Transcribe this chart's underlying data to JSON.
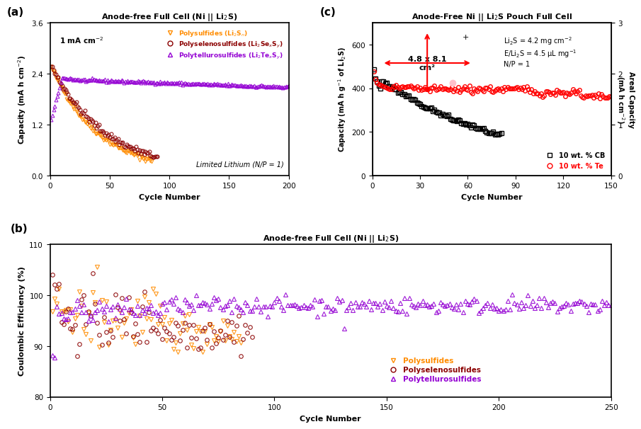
{
  "panel_a": {
    "title": "Anode-free Full Cell (Ni || Li$_2$S)",
    "xlabel": "Cycle Number",
    "ylabel": "Capacity (mA h cm$^{-2}$)",
    "annotation": "1 mA cm$^{-2}$",
    "annotation2": "Limited Lithium (N/P = 1)",
    "xlim": [
      0,
      200
    ],
    "ylim": [
      0.0,
      3.6
    ],
    "yticks": [
      0.0,
      1.2,
      2.4,
      3.6
    ],
    "xticks": [
      0,
      50,
      100,
      150,
      200
    ],
    "legend_labels": [
      "Polysulfides (Li$_2$S$_n$)",
      "Polyselenosulfides (Li$_2$Se$_x$S$_y$)",
      "Polytellurosulfides (Li$_2$Te$_x$S$_y$)"
    ],
    "colors": [
      "#FF8C00",
      "#8B0000",
      "#9400D3"
    ],
    "markers": [
      "v",
      "o",
      "^"
    ]
  },
  "panel_b": {
    "title": "Anode-free Full Cell (Ni || Li$_2$S)",
    "xlabel": "Cycle Number",
    "ylabel": "Coulombic Efficiency (%)",
    "xlim": [
      0,
      250
    ],
    "ylim": [
      80,
      110
    ],
    "yticks": [
      80,
      90,
      100,
      110
    ],
    "xticks": [
      0,
      50,
      100,
      150,
      200,
      250
    ],
    "legend_labels": [
      "Polysulfides",
      "Polyselenosulfides",
      "Polytellurosulfides"
    ],
    "colors": [
      "#FF8C00",
      "#8B0000",
      "#9400D3"
    ],
    "markers": [
      "v",
      "o",
      "^"
    ]
  },
  "panel_c": {
    "title": "Anode-Free Ni || Li$_2$S Pouch Full Cell",
    "xlabel": "Cycle Number",
    "ylabel_left": "Capacity (mA h g$^{-1}$ of Li$_2$S)",
    "ylabel_right": "Areal Capacity\n(mA h cm$^{-2}$)",
    "xlim": [
      0,
      150
    ],
    "ylim_left": [
      0,
      700
    ],
    "ylim_right": [
      0,
      3
    ],
    "yticks_left": [
      0,
      200,
      400,
      600
    ],
    "yticks_right": [
      0,
      1,
      2,
      3
    ],
    "xticks": [
      0,
      30,
      60,
      90,
      120,
      150
    ],
    "legend_labels": [
      "10 wt. % CB",
      "10 wt. % Te"
    ],
    "colors": [
      "black",
      "red"
    ],
    "markers": [
      "s",
      "o"
    ],
    "annotation_text": "Li$_2$S = 4.2 mg cm$^{-2}$\nE/Li$_2$S = 4.5 μL mg$^{-1}$\nN/P = 1",
    "pouch_label": "4.8 x 8.1\ncm²"
  },
  "bg_color": "#FFFFFF"
}
